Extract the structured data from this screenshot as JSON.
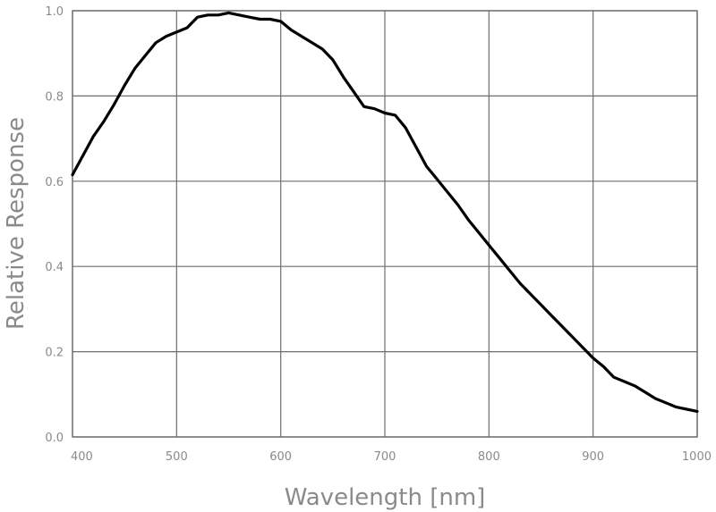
{
  "chart_data": {
    "type": "line",
    "title": "",
    "xlabel": "Wavelength [nm]",
    "ylabel": "Relative Response",
    "xlim": [
      400,
      1000
    ],
    "ylim": [
      0.0,
      1.0
    ],
    "x_ticks": [
      "400",
      "500",
      "600",
      "700",
      "800",
      "900",
      "1000"
    ],
    "y_ticks": [
      "0.0",
      "0.2",
      "0.4",
      "0.6",
      "0.8",
      "1.0"
    ],
    "grid": true,
    "legend": "none",
    "line_color": "#000000",
    "series": [
      {
        "x": [
          400,
          410,
          420,
          430,
          440,
          450,
          460,
          470,
          480,
          490,
          500,
          510,
          520,
          530,
          540,
          550,
          560,
          570,
          580,
          590,
          600,
          610,
          620,
          630,
          640,
          650,
          660,
          670,
          680,
          690,
          700,
          710,
          720,
          730,
          740,
          750,
          760,
          770,
          780,
          790,
          800,
          810,
          820,
          830,
          840,
          850,
          860,
          870,
          880,
          890,
          900,
          910,
          920,
          930,
          940,
          950,
          960,
          970,
          980,
          990,
          1000
        ],
        "y": [
          0.615,
          0.66,
          0.705,
          0.74,
          0.78,
          0.825,
          0.865,
          0.895,
          0.925,
          0.94,
          0.95,
          0.96,
          0.985,
          0.99,
          0.99,
          0.995,
          0.99,
          0.985,
          0.98,
          0.98,
          0.975,
          0.955,
          0.94,
          0.925,
          0.91,
          0.885,
          0.845,
          0.81,
          0.775,
          0.77,
          0.76,
          0.755,
          0.725,
          0.68,
          0.635,
          0.605,
          0.575,
          0.545,
          0.51,
          0.48,
          0.45,
          0.42,
          0.39,
          0.36,
          0.335,
          0.31,
          0.285,
          0.26,
          0.235,
          0.21,
          0.185,
          0.165,
          0.14,
          0.13,
          0.12,
          0.105,
          0.09,
          0.08,
          0.07,
          0.065,
          0.06
        ]
      }
    ]
  }
}
